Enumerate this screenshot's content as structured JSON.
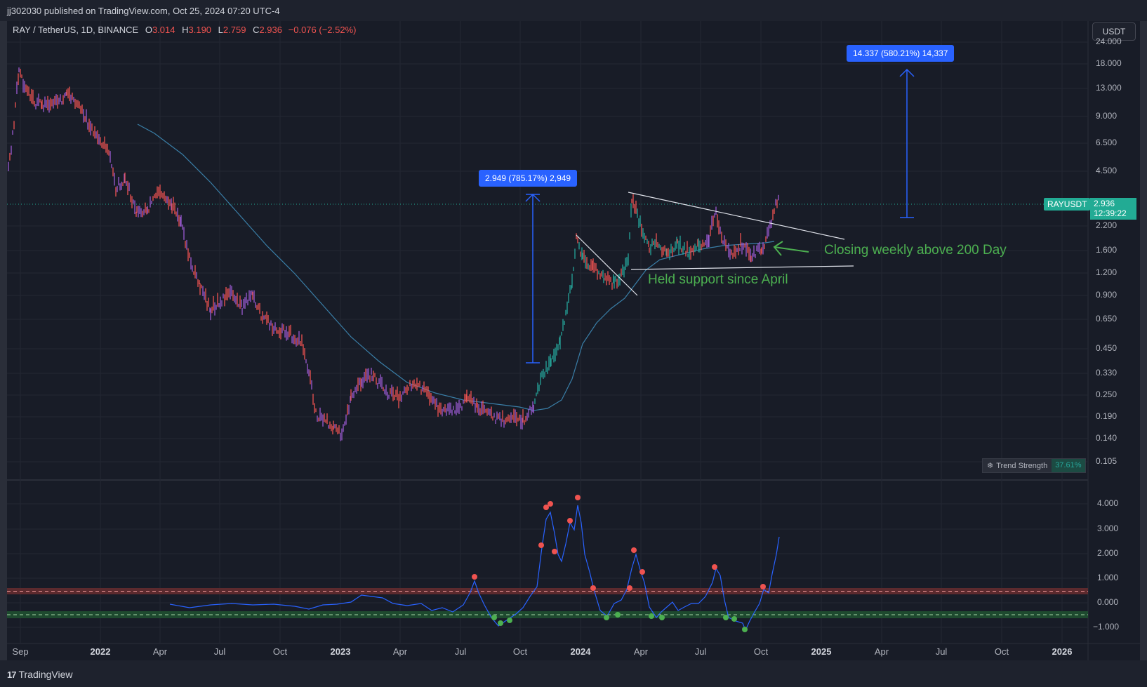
{
  "header": {
    "published_text": "jj302030 published on TradingView.com, Oct 25, 2024 07:20 UTC-4"
  },
  "legend": {
    "symbol": "RAY / TetherUS, 1D, BINANCE",
    "open_label": "O",
    "open_value": "3.014",
    "high_label": "H",
    "high_value": "3.190",
    "low_label": "L",
    "low_value": "2.759",
    "close_label": "C",
    "close_value": "2.936",
    "change": "−0.076 (−2.52%)"
  },
  "currency_button": "USDT",
  "price_axis_labels": [
    "24.000",
    "18.000",
    "13.000",
    "9.000",
    "6.500",
    "4.500",
    "2.200",
    "1.600",
    "1.200",
    "0.900",
    "0.650",
    "0.450",
    "0.330",
    "0.250",
    "0.190",
    "0.140",
    "0.105"
  ],
  "oscillator_axis_labels": [
    "4.000",
    "3.000",
    "2.000",
    "1.000",
    "0.000",
    "−1.000"
  ],
  "time_axis_labels": [
    {
      "text": "Sep",
      "bold": false
    },
    {
      "text": "2022",
      "bold": true
    },
    {
      "text": "Apr",
      "bold": false
    },
    {
      "text": "Jul",
      "bold": false
    },
    {
      "text": "Oct",
      "bold": false
    },
    {
      "text": "2023",
      "bold": true
    },
    {
      "text": "Apr",
      "bold": false
    },
    {
      "text": "Jul",
      "bold": false
    },
    {
      "text": "Oct",
      "bold": false
    },
    {
      "text": "2024",
      "bold": true
    },
    {
      "text": "Apr",
      "bold": false
    },
    {
      "text": "Jul",
      "bold": false
    },
    {
      "text": "Oct",
      "bold": false
    },
    {
      "text": "2025",
      "bold": true
    },
    {
      "text": "Apr",
      "bold": false
    },
    {
      "text": "Jul",
      "bold": false
    },
    {
      "text": "Oct",
      "bold": false
    },
    {
      "text": "2026",
      "bold": true
    }
  ],
  "last_price": {
    "ticker": "RAYUSDT",
    "price": "2.936",
    "countdown": "12:39:22"
  },
  "annotations": {
    "measure_1": "2.949 (785.17%) 2,949",
    "measure_2": "14.337 (580.21%) 14,337",
    "closing_note": "Closing weekly above 200 Day",
    "support_note": "Held support since April"
  },
  "indicator_badge": {
    "icon": "snowflake-icon",
    "name": "Trend Strength",
    "value": "37.61%"
  },
  "footer": {
    "brand": "TradingView",
    "logo_mark": "17"
  },
  "colors": {
    "background": "#181c27",
    "up_candle": "#26a69a",
    "down_candle": "#ef5350",
    "ma_line": "#3a7fa8",
    "oscillator_line": "#2962ff",
    "measure_blue": "#2962ff",
    "annotation_green": "#4caf50",
    "price_tag": "#22ab94"
  }
}
